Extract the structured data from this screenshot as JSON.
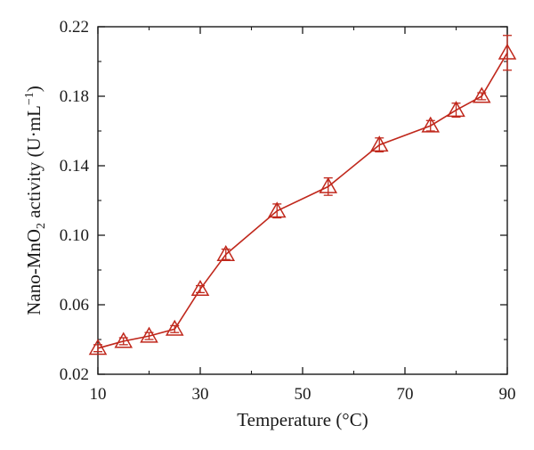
{
  "chart_data": {
    "type": "line",
    "title": "",
    "xlabel": "Temperature (°C)",
    "ylabel": {
      "prefix": "Nano-MnO",
      "sub": "2",
      "mid": " activity (U·mL",
      "sup": "−1",
      "suffix": ")"
    },
    "xlim": [
      10,
      90
    ],
    "ylim": [
      0.02,
      0.22
    ],
    "xticks": [
      "10",
      "30",
      "50",
      "70",
      "90"
    ],
    "yticks": [
      "0.02",
      "0.06",
      "0.10",
      "0.14",
      "0.18",
      "0.22"
    ],
    "grid": false,
    "legend": "none",
    "series": [
      {
        "marker": "open-triangle",
        "color": "#c0281c",
        "x": [
          10,
          15,
          20,
          25,
          30,
          35,
          45,
          55,
          65,
          75,
          80,
          85,
          90
        ],
        "y": [
          0.035,
          0.039,
          0.042,
          0.046,
          0.069,
          0.089,
          0.114,
          0.128,
          0.152,
          0.163,
          0.172,
          0.18,
          0.205
        ],
        "err": [
          0.002,
          0.002,
          0.002,
          0.002,
          0.002,
          0.003,
          0.004,
          0.005,
          0.004,
          0.003,
          0.004,
          0.002,
          0.01
        ]
      }
    ]
  }
}
